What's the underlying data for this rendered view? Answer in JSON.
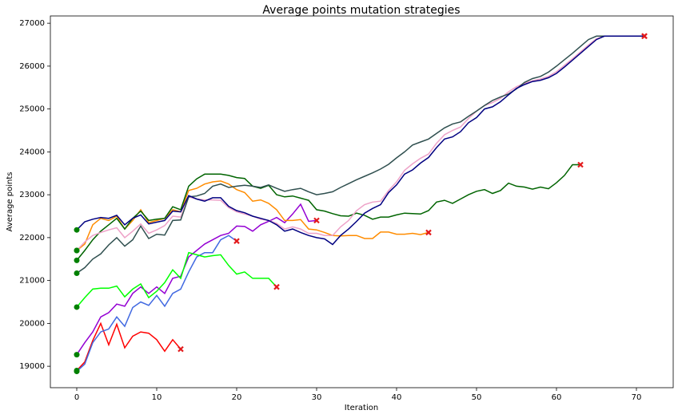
{
  "chart_data": {
    "type": "line",
    "title": "Average points mutation strategies",
    "x_label": "Iteration",
    "y_label": "Average points",
    "x": [
      0,
      1,
      2,
      3,
      4,
      5,
      6,
      7,
      8,
      9,
      10,
      11,
      12,
      13,
      14,
      15,
      16,
      17,
      18,
      19,
      20,
      21,
      22,
      23,
      24,
      25,
      26,
      27,
      28,
      29,
      30,
      31,
      32,
      33,
      34,
      35,
      36,
      37,
      38,
      39,
      40,
      41,
      42,
      43,
      44,
      45,
      46,
      47,
      48,
      49,
      50,
      51,
      52,
      53,
      54,
      55,
      56,
      57,
      58,
      59,
      60,
      61,
      62,
      63,
      64,
      65,
      66,
      67,
      68,
      69,
      70,
      71
    ],
    "xlim": [
      -3.3,
      74.6
    ],
    "ylim": [
      18500,
      27170
    ],
    "xticks": [
      0,
      10,
      20,
      30,
      40,
      50,
      60,
      70
    ],
    "yticks": [
      19000,
      20000,
      21000,
      22000,
      23000,
      24000,
      25000,
      26000,
      27000
    ],
    "start_marker_color": "#008000",
    "end_marker_color": "#e31a1c",
    "series": [
      {
        "color": "#ff0000",
        "values": [
          18900,
          19100,
          19600,
          20000,
          19500,
          19980,
          19430,
          19700,
          19800,
          19770,
          19620,
          19350,
          19620,
          19400,
          null,
          null,
          null,
          null,
          null,
          null,
          null,
          null,
          null,
          null,
          null,
          null,
          null,
          null,
          null,
          null,
          null,
          null,
          null,
          null,
          null,
          null,
          null,
          null,
          null,
          null,
          null,
          null,
          null,
          null,
          null,
          null,
          null,
          null,
          null,
          null,
          null,
          null,
          null,
          null,
          null,
          null,
          null,
          null,
          null,
          null,
          null,
          null,
          null,
          null,
          null,
          null,
          null,
          null,
          null,
          null,
          null,
          null
        ]
      },
      {
        "color": "#4169e1",
        "values": [
          18880,
          19050,
          19550,
          19800,
          19870,
          20150,
          19930,
          20370,
          20500,
          20420,
          20650,
          20400,
          20700,
          20800,
          21200,
          21550,
          21650,
          21650,
          21950,
          22050,
          21920,
          null,
          null,
          null,
          null,
          null,
          null,
          null,
          null,
          null,
          null,
          null,
          null,
          null,
          null,
          null,
          null,
          null,
          null,
          null,
          null,
          null,
          null,
          null,
          null,
          null,
          null,
          null,
          null,
          null,
          null,
          null,
          null,
          null,
          null,
          null,
          null,
          null,
          null,
          null,
          null,
          null,
          null,
          null,
          null,
          null,
          null,
          null,
          null,
          null,
          null,
          null
        ]
      },
      {
        "color": "#9400d3",
        "values": [
          19270,
          19550,
          19800,
          20150,
          20250,
          20450,
          20400,
          20700,
          20850,
          20700,
          20850,
          20700,
          21050,
          21100,
          21550,
          21700,
          21850,
          21950,
          22050,
          22100,
          22270,
          22260,
          22150,
          22300,
          22380,
          22470,
          22350,
          22550,
          22780,
          22380,
          22400,
          null,
          null,
          null,
          null,
          null,
          null,
          null,
          null,
          null,
          null,
          null,
          null,
          null,
          null,
          null,
          null,
          null,
          null,
          null,
          null,
          null,
          null,
          null,
          null,
          null,
          null,
          null,
          null,
          null,
          null,
          null,
          null,
          null,
          null,
          null,
          null,
          null,
          null,
          null,
          null,
          null
        ]
      },
      {
        "color": "#00ff00",
        "values": [
          20380,
          20600,
          20800,
          20820,
          20820,
          20870,
          20620,
          20800,
          20920,
          20600,
          20750,
          20950,
          21250,
          21050,
          21650,
          21600,
          21550,
          21580,
          21600,
          21350,
          21150,
          21200,
          21050,
          21050,
          21050,
          20850,
          null,
          null,
          null,
          null,
          null,
          null,
          null,
          null,
          null,
          null,
          null,
          null,
          null,
          null,
          null,
          null,
          null,
          null,
          null,
          null,
          null,
          null,
          null,
          null,
          null,
          null,
          null,
          null,
          null,
          null,
          null,
          null,
          null,
          null,
          null,
          null,
          null,
          null,
          null,
          null,
          null,
          null,
          null,
          null,
          null,
          null
        ]
      },
      {
        "color": "#ff8c00",
        "values": [
          21700,
          21850,
          22300,
          22450,
          22400,
          22500,
          22200,
          22400,
          22650,
          22350,
          22400,
          22450,
          22650,
          22600,
          23100,
          23150,
          23250,
          23300,
          23320,
          23250,
          23120,
          23050,
          22850,
          22880,
          22800,
          22650,
          22400,
          22400,
          22420,
          22200,
          22180,
          22120,
          22050,
          22040,
          22050,
          22050,
          21980,
          21980,
          22130,
          22130,
          22080,
          22080,
          22100,
          22070,
          22120,
          null,
          null,
          null,
          null,
          null,
          null,
          null,
          null,
          null,
          null,
          null,
          null,
          null,
          null,
          null,
          null,
          null,
          null,
          null,
          null,
          null,
          null,
          null,
          null,
          null,
          null,
          null
        ]
      },
      {
        "color": "#006400",
        "values": [
          21470,
          21700,
          21950,
          22150,
          22300,
          22450,
          22200,
          22450,
          22620,
          22400,
          22430,
          22450,
          22720,
          22650,
          23200,
          23370,
          23480,
          23480,
          23480,
          23450,
          23400,
          23380,
          23200,
          23150,
          23220,
          23000,
          22950,
          22970,
          22920,
          22870,
          22650,
          22620,
          22560,
          22510,
          22500,
          22570,
          22520,
          22430,
          22480,
          22480,
          22530,
          22570,
          22560,
          22550,
          22630,
          22830,
          22870,
          22800,
          22900,
          23000,
          23080,
          23120,
          23030,
          23100,
          23270,
          23200,
          23180,
          23130,
          23180,
          23140,
          23280,
          23450,
          23700,
          23700,
          null,
          null,
          null,
          null,
          null,
          null,
          null,
          null
        ]
      },
      {
        "color": "#eea2c8",
        "values": [
          21700,
          21900,
          22050,
          22120,
          22180,
          22230,
          22000,
          22150,
          22320,
          22100,
          22180,
          22280,
          22500,
          22480,
          22950,
          22900,
          22880,
          22880,
          22870,
          22700,
          22600,
          22550,
          22500,
          22430,
          22400,
          22330,
          22200,
          22250,
          22200,
          22100,
          22100,
          22050,
          22050,
          22250,
          22400,
          22630,
          22770,
          22830,
          22850,
          23100,
          23300,
          23570,
          23720,
          23850,
          23950,
          24200,
          24400,
          24500,
          24580,
          24780,
          24950,
          25080,
          25150,
          25250,
          25400,
          25520,
          25600,
          25660,
          25700,
          25760,
          25870,
          26020,
          26170,
          26330,
          26490,
          26640,
          26700,
          26700,
          26700,
          26700,
          26700,
          26700
        ]
      },
      {
        "color": "#2f4f4f",
        "values": [
          21170,
          21300,
          21500,
          21620,
          21830,
          22000,
          21800,
          21950,
          22270,
          21980,
          22080,
          22060,
          22400,
          22410,
          22950,
          22970,
          23030,
          23200,
          23250,
          23170,
          23200,
          23220,
          23200,
          23170,
          23230,
          23150,
          23080,
          23120,
          23150,
          23070,
          23000,
          23030,
          23070,
          23170,
          23260,
          23350,
          23430,
          23510,
          23600,
          23710,
          23860,
          24000,
          24160,
          24230,
          24300,
          24430,
          24560,
          24650,
          24700,
          24830,
          24950,
          25080,
          25200,
          25280,
          25350,
          25470,
          25620,
          25710,
          25760,
          25860,
          26000,
          26150,
          26300,
          26460,
          26620,
          26700,
          26700,
          26700,
          26700,
          26700,
          26700,
          26700
        ]
      },
      {
        "color": "#000080",
        "values": [
          22180,
          22370,
          22430,
          22470,
          22450,
          22520,
          22300,
          22450,
          22530,
          22320,
          22360,
          22400,
          22620,
          22600,
          22980,
          22900,
          22850,
          22930,
          22930,
          22730,
          22630,
          22580,
          22500,
          22450,
          22400,
          22300,
          22150,
          22200,
          22120,
          22050,
          22000,
          21970,
          21840,
          22050,
          22200,
          22380,
          22570,
          22680,
          22770,
          23050,
          23230,
          23480,
          23580,
          23740,
          23870,
          24100,
          24300,
          24350,
          24470,
          24680,
          24800,
          25000,
          25050,
          25170,
          25330,
          25480,
          25570,
          25640,
          25670,
          25730,
          25830,
          25980,
          26140,
          26300,
          26460,
          26620,
          26700,
          26700,
          26700,
          26700,
          26700,
          26700
        ]
      }
    ]
  }
}
